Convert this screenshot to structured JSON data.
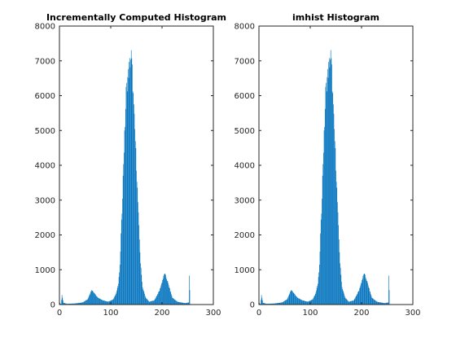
{
  "window": {
    "background": "#ffffff"
  },
  "chart_data": [
    {
      "type": "bar",
      "title": "Incrementally Computed Histogram",
      "xlabel": "",
      "ylabel": "",
      "xlim": [
        0,
        300
      ],
      "ylim": [
        0,
        8000
      ],
      "xticks": [
        0,
        100,
        200,
        300
      ],
      "yticks": [
        0,
        1000,
        2000,
        3000,
        4000,
        5000,
        6000,
        7000,
        8000
      ],
      "bar_color": "#0072bd",
      "grid": false,
      "bins_x": "0..255 (intensity levels)",
      "values_anchor_points": [
        [
          0,
          80
        ],
        [
          3,
          0
        ],
        [
          5,
          270
        ],
        [
          8,
          50
        ],
        [
          15,
          20
        ],
        [
          30,
          30
        ],
        [
          45,
          60
        ],
        [
          55,
          150
        ],
        [
          60,
          330
        ],
        [
          63,
          430
        ],
        [
          67,
          350
        ],
        [
          75,
          200
        ],
        [
          85,
          120
        ],
        [
          95,
          80
        ],
        [
          105,
          150
        ],
        [
          110,
          300
        ],
        [
          115,
          600
        ],
        [
          118,
          1100
        ],
        [
          120,
          2000
        ],
        [
          122,
          2700
        ],
        [
          125,
          4100
        ],
        [
          128,
          5200
        ],
        [
          130,
          6100
        ],
        [
          133,
          6500
        ],
        [
          135,
          6700
        ],
        [
          137,
          6900
        ],
        [
          140,
          7150
        ],
        [
          142,
          6700
        ],
        [
          145,
          5600
        ],
        [
          148,
          4700
        ],
        [
          150,
          4000
        ],
        [
          152,
          3300
        ],
        [
          155,
          2200
        ],
        [
          158,
          1200
        ],
        [
          162,
          500
        ],
        [
          168,
          200
        ],
        [
          175,
          80
        ],
        [
          185,
          120
        ],
        [
          195,
          400
        ],
        [
          200,
          650
        ],
        [
          205,
          900
        ],
        [
          210,
          700
        ],
        [
          215,
          450
        ],
        [
          220,
          200
        ],
        [
          230,
          80
        ],
        [
          245,
          40
        ],
        [
          252,
          60
        ],
        [
          253,
          800
        ],
        [
          255,
          0
        ]
      ]
    },
    {
      "type": "bar",
      "title": "imhist Histogram",
      "xlabel": "",
      "ylabel": "",
      "xlim": [
        0,
        300
      ],
      "ylim": [
        0,
        8000
      ],
      "xticks": [
        0,
        100,
        200,
        300
      ],
      "yticks": [
        0,
        1000,
        2000,
        3000,
        4000,
        5000,
        6000,
        7000,
        8000
      ],
      "bar_color": "#0072bd",
      "grid": false,
      "bins_x": "0..255 (intensity levels)",
      "values_anchor_points": [
        [
          0,
          80
        ],
        [
          3,
          0
        ],
        [
          5,
          270
        ],
        [
          8,
          50
        ],
        [
          15,
          20
        ],
        [
          30,
          30
        ],
        [
          45,
          60
        ],
        [
          55,
          150
        ],
        [
          60,
          330
        ],
        [
          63,
          430
        ],
        [
          67,
          350
        ],
        [
          75,
          200
        ],
        [
          85,
          120
        ],
        [
          95,
          80
        ],
        [
          105,
          150
        ],
        [
          110,
          300
        ],
        [
          115,
          600
        ],
        [
          118,
          1100
        ],
        [
          120,
          2000
        ],
        [
          122,
          2700
        ],
        [
          125,
          4100
        ],
        [
          128,
          5200
        ],
        [
          130,
          6100
        ],
        [
          133,
          6500
        ],
        [
          135,
          6700
        ],
        [
          137,
          6900
        ],
        [
          140,
          7150
        ],
        [
          142,
          6700
        ],
        [
          145,
          5600
        ],
        [
          148,
          4700
        ],
        [
          150,
          4000
        ],
        [
          152,
          3300
        ],
        [
          155,
          2200
        ],
        [
          158,
          1200
        ],
        [
          162,
          500
        ],
        [
          168,
          200
        ],
        [
          175,
          80
        ],
        [
          185,
          120
        ],
        [
          195,
          400
        ],
        [
          200,
          650
        ],
        [
          205,
          900
        ],
        [
          210,
          700
        ],
        [
          215,
          450
        ],
        [
          220,
          200
        ],
        [
          230,
          80
        ],
        [
          245,
          40
        ],
        [
          252,
          60
        ],
        [
          253,
          800
        ],
        [
          255,
          0
        ]
      ]
    }
  ]
}
